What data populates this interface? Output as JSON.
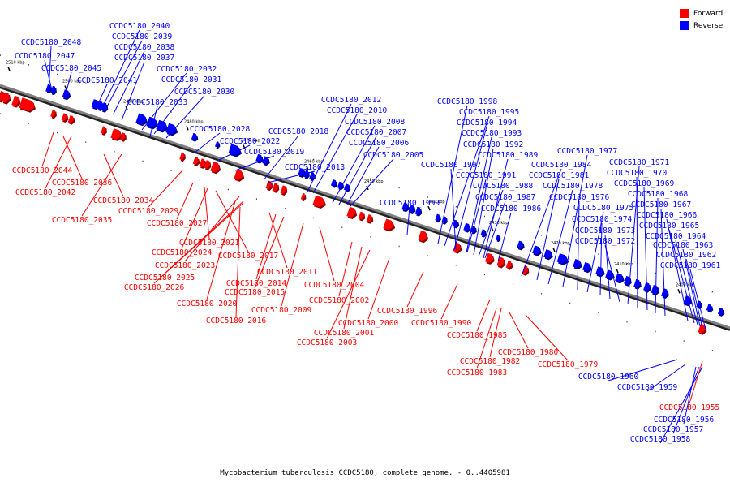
{
  "colors": {
    "forward": "#ff0000",
    "reverse": "#0000ff",
    "axis": "#808080"
  },
  "legend": [
    {
      "label": "Forward",
      "color": "#ff0000"
    },
    {
      "label": "Reverse",
      "color": "#0000ff"
    }
  ],
  "caption": "Mycobacterium tuberculosis CCDC5180, complete genome. - 0..4405981",
  "ticks": [
    "2510 kbp",
    "2500 kbp",
    "2490 kbp",
    "2480 kbp",
    "2470 kbp",
    "2460 kbp",
    "2450 kbp",
    "2440 kbp",
    "2430 kbp",
    "2420 kbp",
    "2410 kbp",
    "2400 kbp"
  ],
  "labels": {
    "reverse": [
      "CCDC5180_2048",
      "CCDC5180_2047",
      "CCDC5180_2045",
      "CCDC5180_2041",
      "CCDC5180_2040",
      "CCDC5180_2039",
      "CCDC5180_2038",
      "CCDC5180_2037",
      "CCDC5180_2032",
      "CCDC5180_2031",
      "CCDC5180_2030",
      "CCDC5180_2033",
      "CCDC5180_2028",
      "CCDC5180_2022",
      "CCDC5180_2019",
      "CCDC5180_2018",
      "CCDC5180_2013",
      "CCDC5180_2012",
      "CCDC5180_2010",
      "CCDC5180_2008",
      "CCDC5180_2007",
      "CCDC5180_2006",
      "CCDC5180_2005",
      "CCDC5180_1999",
      "CCDC5180_1998",
      "CCDC5180_1995",
      "CCDC5180_1994",
      "CCDC5180_1993",
      "CCDC5180_1992",
      "CCDC5180_1989",
      "CCDC5180_1997",
      "CCDC5180_1991",
      "CCDC5180_1988",
      "CCDC5180_1987",
      "CCDC5180_1986",
      "CCDC5180_1984",
      "CCDC5180_1981",
      "CCDC5180_1978",
      "CCDC5180_1977",
      "CCDC5180_1976",
      "CCDC5180_1975",
      "CCDC5180_1974",
      "CCDC5180_1973",
      "CCDC5180_1972",
      "CCDC5180_1971",
      "CCDC5180_1970",
      "CCDC5180_1969",
      "CCDC5180_1968",
      "CCDC5180_1967",
      "CCDC5180_1966",
      "CCDC5180_1965",
      "CCDC5180_1964",
      "CCDC5180_1963",
      "CCDC5180_1962",
      "CCDC5180_1961",
      "CCDC5180_1960",
      "CCDC5180_1959",
      "CCDC5180_1956",
      "CCDC5180_1957",
      "CCDC5180_1958"
    ],
    "forward": [
      "CCDC5180_2044",
      "CCDC5180_2036",
      "CCDC5180_2042",
      "CCDC5180_2034",
      "CCDC5180_2035",
      "CCDC5180_2029",
      "CCDC5180_2027",
      "CCDC5180_2021",
      "CCDC5180_2024",
      "CCDC5180_2017",
      "CCDC5180_2023",
      "CCDC5180_2025",
      "CCDC5180_2026",
      "CCDC5180_2011",
      "CCDC5180_2014",
      "CCDC5180_2015",
      "CCDC5180_2004",
      "CCDC5180_2020",
      "CCDC5180_2002",
      "CCDC5180_2009",
      "CCDC5180_2016",
      "CCDC5180_2000",
      "CCDC5180_2001",
      "CCDC5180_2003",
      "CCDC5180_1996",
      "CCDC5180_1990",
      "CCDC5180_1985",
      "CCDC5180_1980",
      "CCDC5180_1982",
      "CCDC5180_1979",
      "CCDC5180_1983",
      "CCDC5180_1955"
    ]
  }
}
